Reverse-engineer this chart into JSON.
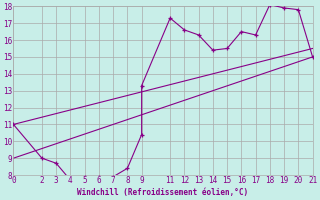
{
  "xlabel": "Windchill (Refroidissement éolien,°C)",
  "bg_color": "#c8eee8",
  "line_color": "#880088",
  "grid_color": "#aaaaaa",
  "series1_x": [
    0,
    2,
    3,
    4,
    5,
    6,
    7,
    8,
    9,
    9,
    11,
    12,
    13,
    14,
    15,
    16,
    17,
    18,
    19,
    20,
    21
  ],
  "series1_y": [
    11,
    9,
    8.7,
    7.7,
    7.9,
    7.9,
    7.9,
    8.4,
    10.4,
    13.3,
    17.3,
    16.6,
    16.3,
    15.4,
    15.5,
    16.5,
    16.3,
    18.1,
    17.9,
    17.8,
    15.0
  ],
  "series2_x": [
    0,
    21
  ],
  "series2_y": [
    11,
    15.5
  ],
  "series3_x": [
    0,
    21
  ],
  "series3_y": [
    9,
    15.0
  ],
  "xlim": [
    0,
    21
  ],
  "ylim": [
    8,
    18
  ],
  "xticks": [
    0,
    2,
    3,
    4,
    5,
    6,
    7,
    8,
    9,
    11,
    12,
    13,
    14,
    15,
    16,
    17,
    18,
    19,
    20,
    21
  ],
  "yticks": [
    8,
    9,
    10,
    11,
    12,
    13,
    14,
    15,
    16,
    17,
    18
  ],
  "tick_fontsize": 5.5,
  "xlabel_fontsize": 5.5
}
